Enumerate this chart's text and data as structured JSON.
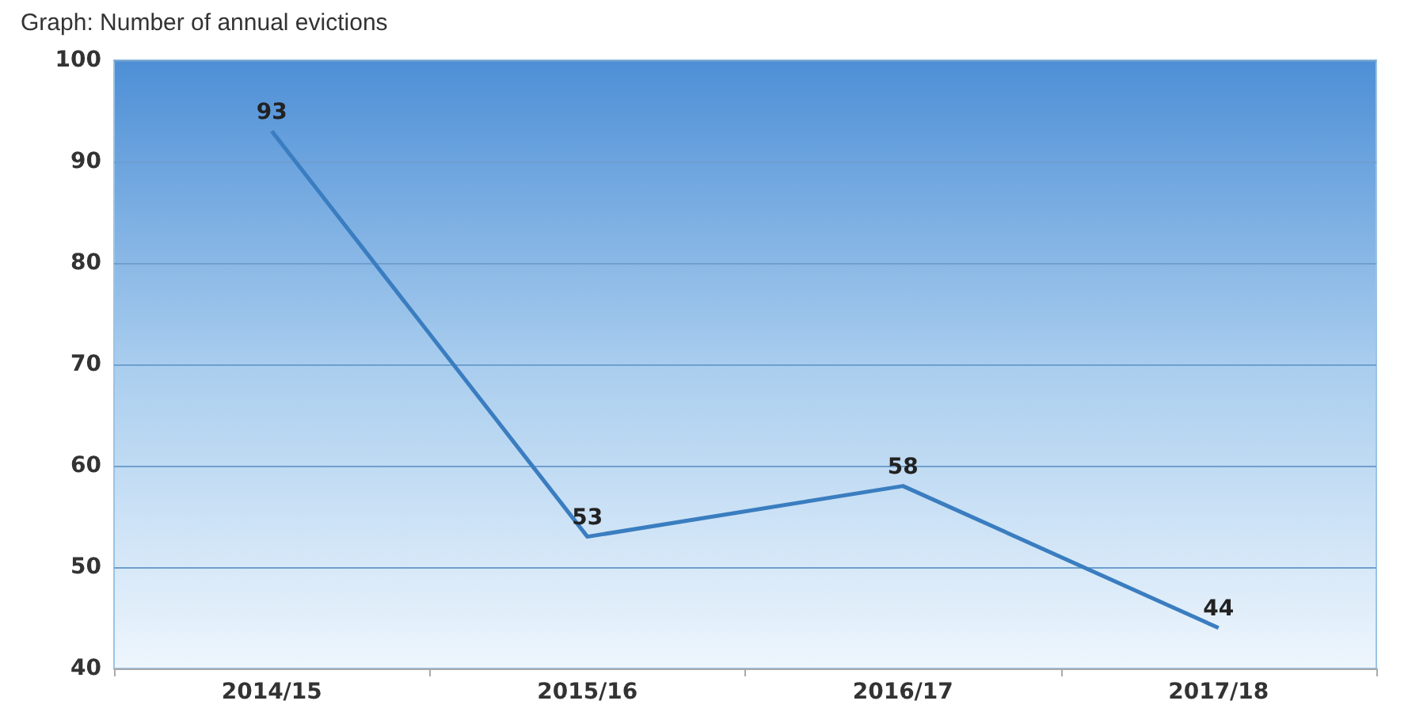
{
  "chart_data": {
    "type": "line",
    "title": "Graph: Number of annual evictions",
    "categories": [
      "2014/15",
      "2015/16",
      "2016/17",
      "2017/18"
    ],
    "series": [
      {
        "color": "#3a7dc0",
        "values": [
          93,
          53,
          58,
          44
        ]
      }
    ],
    "ylim": [
      40,
      100
    ],
    "yticks": [
      40,
      50,
      60,
      70,
      80,
      90,
      100
    ],
    "grid": "y",
    "data_labels": true,
    "marker": "none",
    "line_style": "solid"
  }
}
